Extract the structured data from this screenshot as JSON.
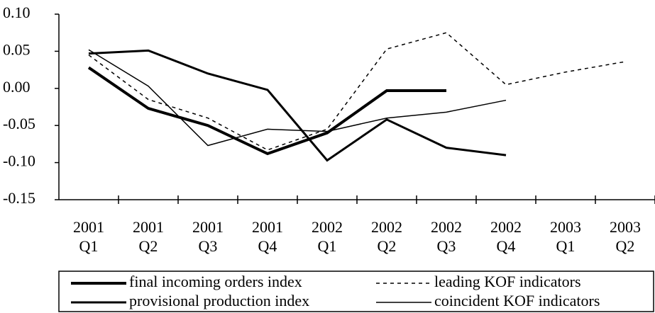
{
  "chart_data": {
    "type": "line",
    "categories": [
      [
        "2001",
        "Q1"
      ],
      [
        "2001",
        "Q2"
      ],
      [
        "2001",
        "Q3"
      ],
      [
        "2001",
        "Q4"
      ],
      [
        "2002",
        "Q1"
      ],
      [
        "2002",
        "Q2"
      ],
      [
        "2002",
        "Q3"
      ],
      [
        "2002",
        "Q4"
      ],
      [
        "2003",
        "Q1"
      ],
      [
        "2003",
        "Q2"
      ]
    ],
    "ylim": [
      -0.15,
      0.1
    ],
    "yticks": [
      {
        "value": 0.1,
        "label": "0.10"
      },
      {
        "value": 0.05,
        "label": "0.05"
      },
      {
        "value": 0,
        "label": "0.00"
      },
      {
        "value": -0.05,
        "label": "-0.05"
      },
      {
        "value": -0.1,
        "label": "-0.10"
      },
      {
        "value": -0.15,
        "label": "-0.15"
      }
    ],
    "series": [
      {
        "name": "final incoming orders index",
        "color": "#000000",
        "width": 4,
        "dash": "none",
        "values": [
          0.028,
          -0.027,
          -0.05,
          -0.088,
          -0.06,
          -0.003,
          -0.003,
          null,
          null,
          null
        ]
      },
      {
        "name": "provisional production index",
        "color": "#000000",
        "width": 3,
        "dash": "none",
        "values": [
          0.047,
          0.051,
          0.02,
          -0.002,
          -0.097,
          -0.042,
          -0.08,
          -0.09,
          null,
          null
        ]
      },
      {
        "name": "leading KOF indicators",
        "color": "#000000",
        "width": 1.5,
        "dash": "5 5",
        "values": [
          0.045,
          -0.015,
          -0.04,
          -0.083,
          -0.055,
          0.053,
          0.075,
          0.005,
          0.022,
          0.036
        ]
      },
      {
        "name": "coincident KOF indicators",
        "color": "#000000",
        "width": 1.5,
        "dash": "none",
        "values": [
          0.052,
          0.003,
          -0.077,
          -0.055,
          -0.058,
          -0.04,
          -0.032,
          -0.016,
          null,
          null
        ]
      }
    ]
  }
}
